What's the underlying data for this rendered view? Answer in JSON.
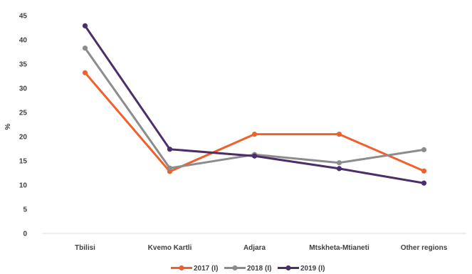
{
  "chart_data": {
    "type": "line",
    "title": "",
    "xlabel": "",
    "ylabel": "%",
    "ylim": [
      0,
      45
    ],
    "yticks": [
      0,
      5,
      10,
      15,
      20,
      25,
      30,
      35,
      40,
      45
    ],
    "grid": false,
    "legend_position": "bottom",
    "categories": [
      "Tbilisi",
      "Kvemo Kartli",
      "Adjara",
      "Mtskheta-Mtianeti",
      "Other regions"
    ],
    "series": [
      {
        "name": "2017 (I)",
        "color": "#f0602c",
        "values": [
          33.2,
          12.8,
          20.5,
          20.5,
          12.9
        ]
      },
      {
        "name": "2018 (I)",
        "color": "#8c8c8c",
        "values": [
          38.3,
          13.5,
          16.3,
          14.6,
          17.3
        ]
      },
      {
        "name": "2019 (I)",
        "color": "#4a2f6a",
        "values": [
          42.9,
          17.4,
          16.0,
          13.4,
          10.4
        ]
      }
    ]
  }
}
